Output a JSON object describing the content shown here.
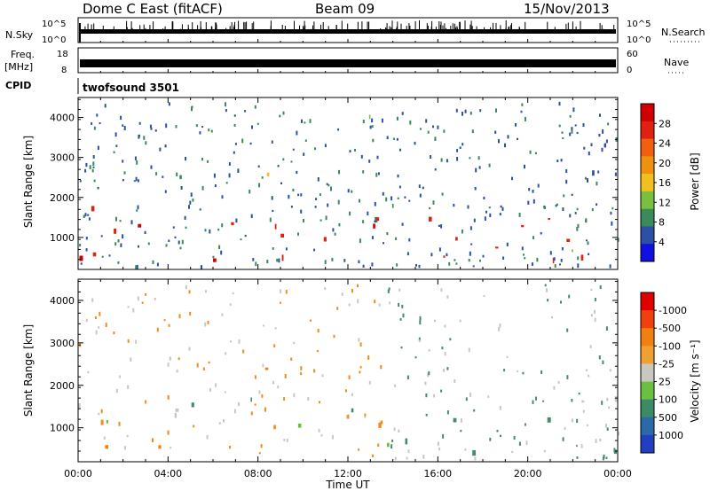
{
  "header": {
    "station": "Dome C East (fitACF)",
    "beam": "Beam 09",
    "date": "15/Nov/2013"
  },
  "aux_panels": {
    "nsky_label": "N.Sky",
    "nsky_ticks": [
      "10^5",
      "10^0"
    ],
    "nsearch_label": "N.Search",
    "nsearch_ticks": [
      "10^5",
      "10^0"
    ],
    "freq_label": "Freq.",
    "freq_unit": "[MHz]",
    "freq_ticks": [
      "18",
      "8"
    ],
    "nave_label": "Nave",
    "nave_ticks": [
      "60",
      "0"
    ],
    "cpid_label": "CPID",
    "cpid_value": "twofsound 3501"
  },
  "colors": {
    "power": [
      "#1010e0",
      "#2c50a8",
      "#3a8a5a",
      "#78c040",
      "#f0c020",
      "#f09010",
      "#f06010",
      "#e02010",
      "#d00000"
    ],
    "velocity": [
      "#2040c0",
      "#2a6aa8",
      "#3d8a66",
      "#6ac040",
      "#c8c8c0",
      "#f0a030",
      "#f08010",
      "#f04010",
      "#e00000"
    ],
    "velocity_main_pos": "#4a8a6a",
    "velocity_main_neg": "#f08c1a",
    "velocity_grey": "#c8c8c0"
  },
  "chart_data": [
    {
      "type": "heatmap",
      "name": "power",
      "ylabel": "Slant Range [km]",
      "yticks": [
        1000,
        2000,
        3000,
        4000
      ],
      "ylim": [
        200,
        4500
      ],
      "xlim": [
        0,
        24
      ],
      "colorbar_label": "Power [dB]",
      "colorbar_ticks": [
        "4",
        "8",
        "12",
        "16",
        "20",
        "24",
        "28"
      ],
      "colorbar_range": [
        0,
        32
      ],
      "regions": [
        {
          "from": 0,
          "to": 13.5,
          "range": [
            400,
            1800
          ],
          "level": "high"
        },
        {
          "from": 13.5,
          "to": 24,
          "range": [
            400,
            2000
          ],
          "level": "high"
        },
        {
          "from": 7.5,
          "to": 10,
          "range": [
            2300,
            2800
          ],
          "level": "medium"
        },
        {
          "from": 11,
          "to": 14,
          "range": [
            3800,
            4300
          ],
          "level": "low"
        },
        {
          "from": 21.5,
          "to": 24,
          "range": [
            2300,
            3500
          ],
          "level": "low"
        }
      ]
    },
    {
      "type": "heatmap",
      "name": "velocity",
      "xlabel": "Time UT",
      "ylabel": "Slant Range [km]",
      "xticks": [
        "00:00",
        "04:00",
        "08:00",
        "12:00",
        "16:00",
        "20:00",
        "00:00"
      ],
      "yticks": [
        1000,
        2000,
        3000,
        4000
      ],
      "ylim": [
        200,
        4500
      ],
      "xlim": [
        0,
        24
      ],
      "colorbar_label": "Velocity [m s⁻¹]",
      "colorbar_ticks": [
        "1000",
        "500",
        "100",
        "25",
        "-25",
        "-100",
        "-500",
        "-1000"
      ],
      "regions": [
        {
          "from": 0,
          "to": 13.7,
          "range": [
            500,
            1300
          ],
          "velocity": "-100 to -500"
        },
        {
          "from": 0,
          "to": 24,
          "range": [
            1300,
            1900
          ],
          "velocity": "-25 to 25"
        },
        {
          "from": 13.7,
          "to": 24,
          "range": [
            400,
            1500
          ],
          "velocity": "100 to 500"
        },
        {
          "from": 7.5,
          "to": 10,
          "range": [
            2300,
            2800
          ],
          "velocity": "-100 to -500"
        },
        {
          "from": 12,
          "to": 14,
          "range": [
            3800,
            4300
          ],
          "velocity": "-25 to 25"
        }
      ]
    }
  ]
}
